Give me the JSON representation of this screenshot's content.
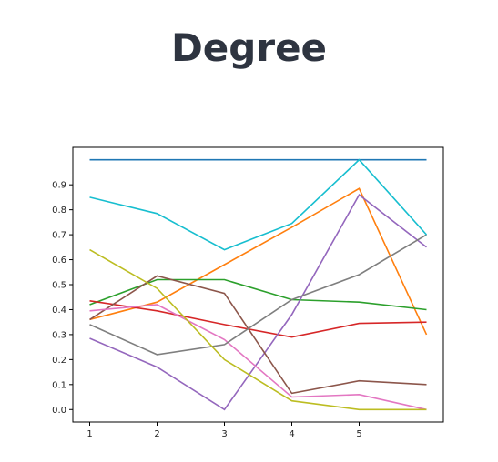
{
  "page_title": "Degree",
  "chart_data": {
    "type": "line",
    "title": "",
    "xlabel": "",
    "ylabel": "",
    "x": [
      1,
      2,
      3,
      4,
      5,
      6
    ],
    "x_ticks": [
      1,
      2,
      3,
      4,
      5
    ],
    "y_ticks": [
      0.0,
      0.1,
      0.2,
      0.3,
      0.4,
      0.5,
      0.6,
      0.7,
      0.8,
      0.9
    ],
    "xlim": [
      0.75,
      6.25
    ],
    "ylim": [
      -0.05,
      1.05
    ],
    "grid": false,
    "series": [
      {
        "color": "#1f77b4",
        "values": [
          1.0,
          1.0,
          1.0,
          1.0,
          1.0,
          1.0
        ]
      },
      {
        "color": "#ff7f0e",
        "values": [
          0.36,
          0.43,
          0.58,
          0.73,
          0.885,
          0.3
        ]
      },
      {
        "color": "#2ca02c",
        "values": [
          0.42,
          0.52,
          0.52,
          0.44,
          0.43,
          0.4
        ]
      },
      {
        "color": "#d62728",
        "values": [
          0.435,
          0.395,
          0.34,
          0.29,
          0.345,
          0.35
        ]
      },
      {
        "color": "#9467bd",
        "values": [
          0.285,
          0.17,
          0.0,
          0.38,
          0.86,
          0.65
        ]
      },
      {
        "color": "#8c564b",
        "values": [
          0.36,
          0.535,
          0.465,
          0.065,
          0.115,
          0.1
        ]
      },
      {
        "color": "#e377c2",
        "values": [
          0.395,
          0.42,
          0.28,
          0.05,
          0.06,
          0.0
        ]
      },
      {
        "color": "#7f7f7f",
        "values": [
          0.34,
          0.22,
          0.26,
          0.44,
          0.54,
          0.7
        ]
      },
      {
        "color": "#bcbd22",
        "values": [
          0.64,
          0.485,
          0.2,
          0.035,
          0.0,
          0.0
        ]
      },
      {
        "color": "#17becf",
        "values": [
          0.85,
          0.785,
          0.64,
          0.745,
          1.0,
          0.7
        ]
      }
    ]
  }
}
